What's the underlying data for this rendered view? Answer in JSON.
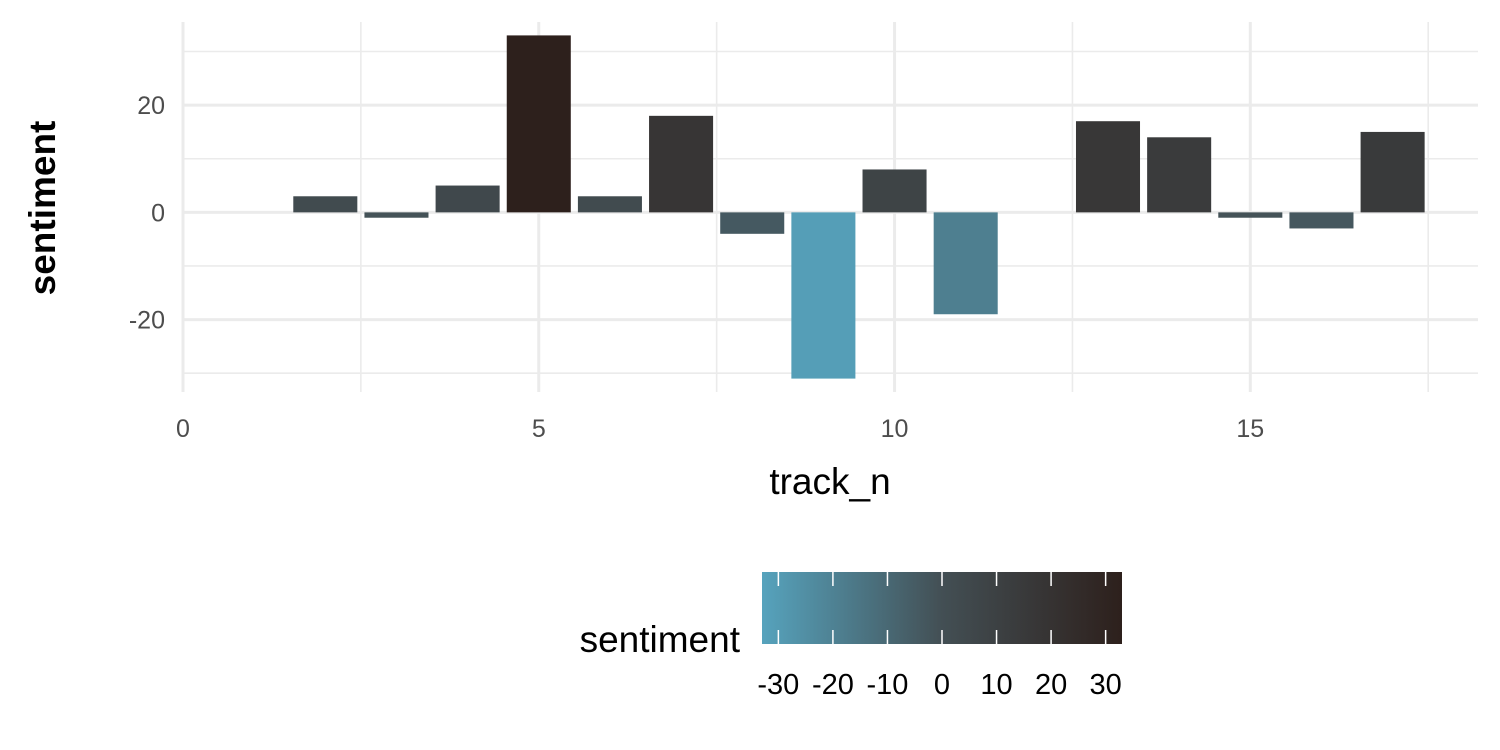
{
  "chart_data": {
    "type": "bar",
    "xlabel": "track_n",
    "ylabel": "sentiment",
    "x": [
      1,
      2,
      3,
      4,
      5,
      6,
      7,
      8,
      9,
      10,
      11,
      12,
      13,
      14,
      15,
      16,
      17
    ],
    "values": [
      0,
      3,
      -1,
      5,
      33,
      3,
      18,
      -4,
      -31,
      8,
      -19,
      0,
      17,
      14,
      -1,
      -3,
      15
    ],
    "xlim": [
      0,
      18.2
    ],
    "ylim": [
      -33.5,
      35.5
    ],
    "x_ticks": [
      {
        "value": 0,
        "label": "0"
      },
      {
        "value": 5,
        "label": "5"
      },
      {
        "value": 10,
        "label": "10"
      },
      {
        "value": 15,
        "label": "15"
      }
    ],
    "y_ticks": [
      {
        "value": 20,
        "label": "20"
      },
      {
        "value": 0,
        "label": "0"
      },
      {
        "value": -20,
        "label": "-20"
      }
    ],
    "grid": true,
    "legend": {
      "title": "sentiment",
      "placement": "bottom",
      "range": [
        -33,
        33
      ],
      "low_color": "#56a3bd",
      "mid_color": "#434f54",
      "high_color": "#2d201c",
      "ticks": [
        {
          "value": -30,
          "label": "-30"
        },
        {
          "value": -20,
          "label": "-20"
        },
        {
          "value": -10,
          "label": "-10"
        },
        {
          "value": 0,
          "label": "0"
        },
        {
          "value": 10,
          "label": "10"
        },
        {
          "value": 20,
          "label": "20"
        },
        {
          "value": 30,
          "label": "30"
        }
      ]
    }
  }
}
